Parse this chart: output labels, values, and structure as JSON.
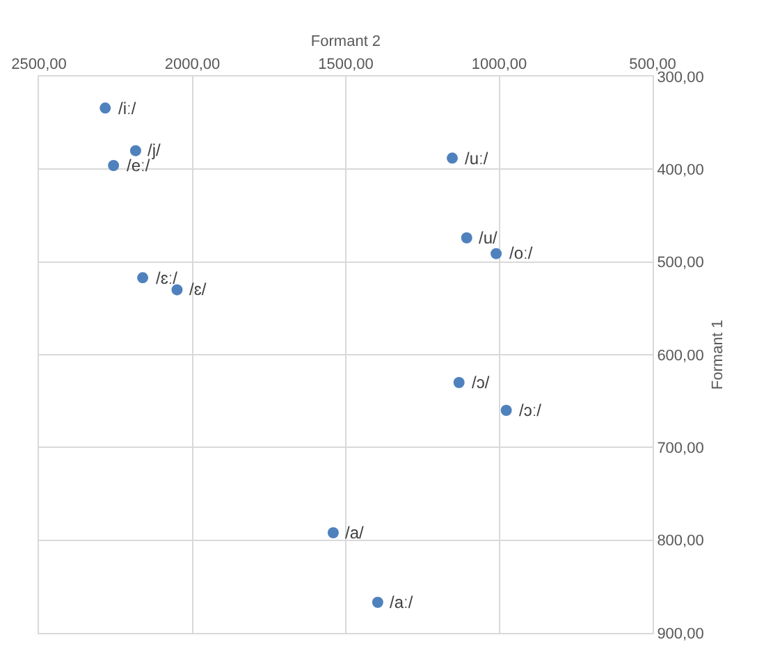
{
  "chart_data": {
    "type": "scatter",
    "xlabel": "Formant 2",
    "ylabel": "Formant 1",
    "x": [
      2284,
      2185,
      2257,
      1153,
      1106,
      1010,
      2162,
      2050,
      1131,
      977,
      1541,
      1396
    ],
    "values": [
      334,
      380,
      396,
      388,
      474,
      491,
      517,
      530,
      630,
      660,
      792,
      867
    ],
    "color": "#4f81bd",
    "marker": "circle",
    "grid": true,
    "xlim": [
      2500,
      500
    ],
    "xticks": [
      {
        "value": 2500,
        "label": "2500,00"
      },
      {
        "value": 2000,
        "label": "2000,00"
      },
      {
        "value": 1500,
        "label": "1500,00"
      },
      {
        "value": 1000,
        "label": "1000,00"
      },
      {
        "value": 500,
        "label": "500,00"
      }
    ],
    "ylim": [
      900,
      300
    ],
    "yticks": [
      {
        "value": 300,
        "label": "300,00"
      },
      {
        "value": 400,
        "label": "400,00"
      },
      {
        "value": 500,
        "label": "500,00"
      },
      {
        "value": 600,
        "label": "600,00"
      },
      {
        "value": 700,
        "label": "700,00"
      },
      {
        "value": 800,
        "label": "800,00"
      },
      {
        "value": 900,
        "label": "900,00"
      }
    ],
    "annotations": [
      {
        "text": "/iː/",
        "x": 2284,
        "y": 334
      },
      {
        "text": "/j/",
        "x": 2185,
        "y": 380
      },
      {
        "text": "/eː/",
        "x": 2257,
        "y": 396
      },
      {
        "text": "/uː/",
        "x": 1153,
        "y": 388
      },
      {
        "text": "/u/",
        "x": 1106,
        "y": 474
      },
      {
        "text": "/oː/",
        "x": 1010,
        "y": 491
      },
      {
        "text": "/ɛː/",
        "x": 2162,
        "y": 517
      },
      {
        "text": "/ɛ/",
        "x": 2050,
        "y": 530
      },
      {
        "text": "/ɔ/",
        "x": 1131,
        "y": 630
      },
      {
        "text": "/ɔː/",
        "x": 977,
        "y": 660
      },
      {
        "text": "/a/",
        "x": 1541,
        "y": 792
      },
      {
        "text": "/aː/",
        "x": 1396,
        "y": 867
      }
    ]
  }
}
